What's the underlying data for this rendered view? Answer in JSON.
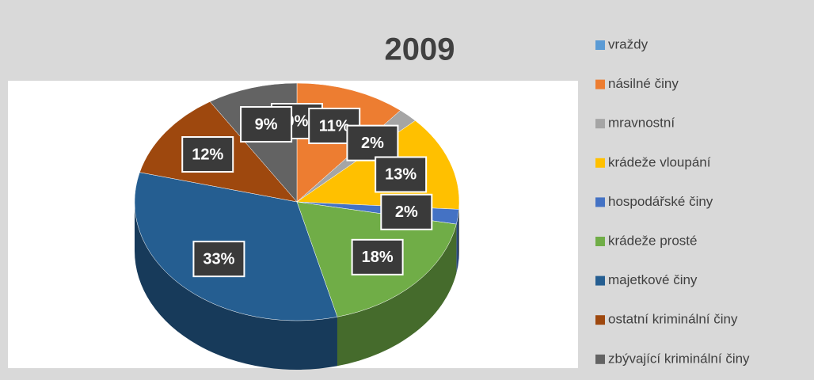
{
  "chart_data": {
    "type": "pie",
    "title": "2009",
    "categories": [
      "vraždy",
      "násilné činy",
      "mravnostní",
      "krádeže vloupání",
      "hospodářské činy",
      "krádeže prosté",
      "majetkové činy",
      "ostatní kriminální činy",
      "zbývající kriminální činy"
    ],
    "values": [
      0,
      11,
      2,
      13,
      2,
      18,
      33,
      12,
      9
    ],
    "value_labels": [
      "0%",
      "11%",
      "2%",
      "13%",
      "2%",
      "18%",
      "33%",
      "12%",
      "9%"
    ],
    "colors": [
      "#5b9bd5",
      "#ed7d31",
      "#a5a5a5",
      "#ffc000",
      "#4472c4",
      "#70ad47",
      "#255e91",
      "#9e480e",
      "#636363"
    ],
    "legend": "right"
  }
}
